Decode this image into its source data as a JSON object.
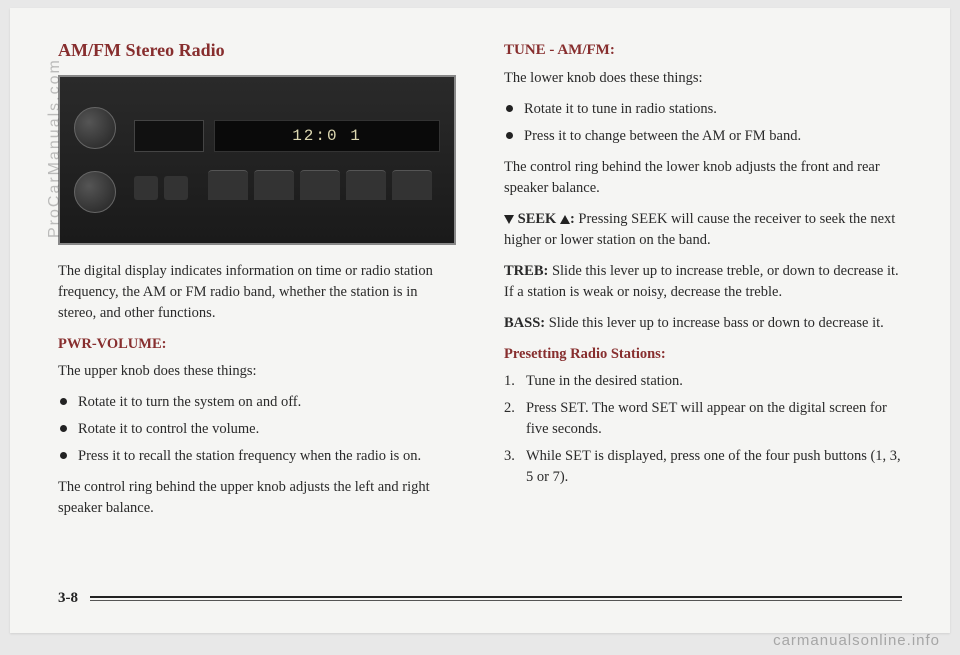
{
  "colors": {
    "heading": "#872e2e",
    "body_text": "#2a2a2a",
    "page_bg": "#f5f5f3",
    "outer_bg": "#e8e8e8"
  },
  "left": {
    "title": "AM/FM Stereo Radio",
    "radio_lcd": "12:0 1",
    "intro": "The digital display indicates information on time or radio station frequency, the AM or FM radio band, whether the station is in stereo, and other functions.",
    "pwr_head": "PWR-VOLUME:",
    "pwr_intro": "The upper knob does these things:",
    "pwr_bullets": [
      "Rotate it to turn the system on and off.",
      "Rotate it to control the volume.",
      "Press it to recall the station frequency when the radio is on."
    ],
    "pwr_after": "The control ring behind the upper knob adjusts the left and right speaker balance."
  },
  "right": {
    "tune_head": "TUNE - AM/FM:",
    "tune_intro": "The lower knob does these things:",
    "tune_bullets": [
      "Rotate it to tune in radio stations.",
      "Press it to change between the AM or FM band."
    ],
    "tune_after": "The control ring behind the lower knob adjusts the front and rear speaker balance.",
    "seek_label": "SEEK",
    "seek_text": "Pressing SEEK will cause the receiver to seek the next higher or lower station on the band.",
    "treb_label": "TREB:",
    "treb_text": "Slide this lever up to increase treble, or down to decrease it. If a station is weak or noisy, decrease the treble.",
    "bass_label": "BASS:",
    "bass_text": "Slide this lever up to increase bass or down to decrease it.",
    "preset_head": "Presetting Radio Stations:",
    "preset_steps": [
      "Tune in the desired station.",
      "Press SET. The word SET will appear on the digital screen for five seconds.",
      "While SET is displayed, press one of the four push buttons (1, 3, 5 or 7)."
    ]
  },
  "footer": {
    "page_num": "3-8"
  },
  "watermarks": {
    "side": "ProCarManuals.com",
    "bottom": "carmanualsonline.info"
  }
}
